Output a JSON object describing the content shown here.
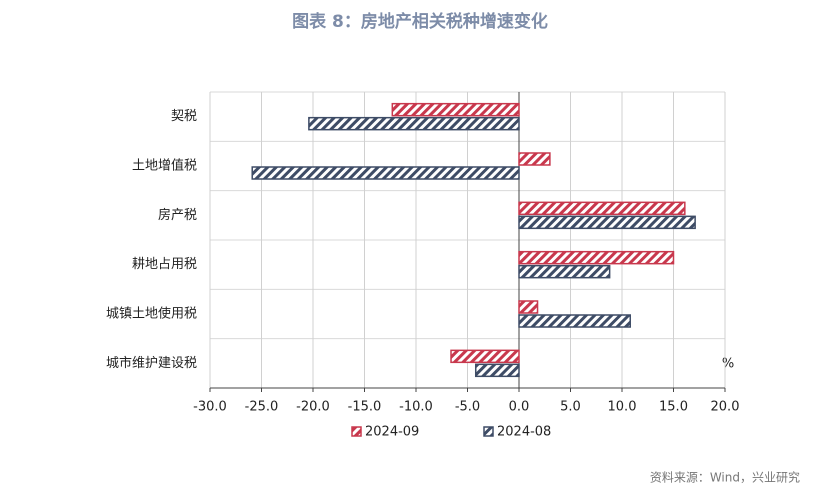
{
  "chart_data": {
    "type": "hbar",
    "title": "图表 8：房地产相关税种增速变化",
    "unit_label": "%",
    "source": "资料来源：Wind，兴业研究",
    "categories": [
      "契税",
      "土地增值税",
      "房产税",
      "耕地占用税",
      "城镇土地使用税",
      "城市维护建设税"
    ],
    "series": [
      {
        "name": "2024-09",
        "color": "#c8384d",
        "values": [
          -12.3,
          3.0,
          16.1,
          15.0,
          1.8,
          -6.6
        ]
      },
      {
        "name": "2024-08",
        "color": "#3e4c66",
        "values": [
          -20.4,
          -25.9,
          17.1,
          8.8,
          10.8,
          -4.2
        ]
      }
    ],
    "xlim": [
      -30,
      20
    ],
    "xticks": [
      {
        "value": -30,
        "label": "-30.0"
      },
      {
        "value": -25,
        "label": "-25.0"
      },
      {
        "value": -20,
        "label": "-20.0"
      },
      {
        "value": -15,
        "label": "-15.0"
      },
      {
        "value": -10,
        "label": "-10.0"
      },
      {
        "value": -5,
        "label": "-5.0"
      },
      {
        "value": 0,
        "label": "0.0"
      },
      {
        "value": 5,
        "label": "5.0"
      },
      {
        "value": 10,
        "label": "10.0"
      },
      {
        "value": 15,
        "label": "15.0"
      },
      {
        "value": 20,
        "label": "20.0"
      }
    ],
    "grid": true
  }
}
